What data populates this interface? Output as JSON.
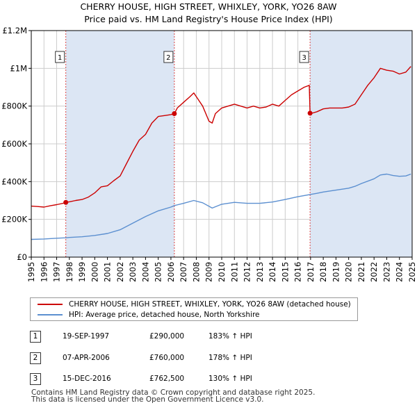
{
  "title_line1": "CHERRY HOUSE, HIGH STREET, WHIXLEY, YORK, YO26 8AW",
  "title_line2": "Price paid vs. HM Land Registry's House Price Index (HPI)",
  "colors": {
    "property": "#cc0000",
    "hpi": "#5b8fd0",
    "shade": "#dce6f4",
    "grid": "#cccccc",
    "marker_line": "#dd4444"
  },
  "chart_data": {
    "type": "line",
    "title": "CHERRY HOUSE, HIGH STREET, WHIXLEY, YORK, YO26 8AW",
    "subtitle": "Price paid vs. HM Land Registry's House Price Index (HPI)",
    "xlim": [
      1995,
      2025
    ],
    "ylim": [
      0,
      1200000
    ],
    "y_ticks": [
      0,
      200000,
      400000,
      600000,
      800000,
      1000000,
      1200000
    ],
    "y_tick_labels": [
      "£0",
      "£200K",
      "£400K",
      "£600K",
      "£800K",
      "£1M",
      "£1.2M"
    ],
    "x_ticks": [
      1995,
      1996,
      1997,
      1998,
      1999,
      2000,
      2001,
      2002,
      2003,
      2004,
      2005,
      2006,
      2007,
      2008,
      2009,
      2010,
      2011,
      2012,
      2013,
      2014,
      2015,
      2016,
      2017,
      2018,
      2019,
      2020,
      2021,
      2022,
      2023,
      2024,
      2025
    ],
    "grid": true,
    "series": [
      {
        "name": "CHERRY HOUSE, HIGH STREET, WHIXLEY, YORK, YO26 8AW (detached house)",
        "color": "#cc0000",
        "x": [
          1995.0,
          1995.5,
          1996.0,
          1996.5,
          1997.0,
          1997.5,
          1997.72,
          1998.0,
          1998.5,
          1999.0,
          1999.5,
          2000.0,
          2000.5,
          2001.0,
          2001.5,
          2002.0,
          2002.5,
          2003.0,
          2003.5,
          2004.0,
          2004.5,
          2005.0,
          2005.5,
          2006.0,
          2006.27,
          2006.5,
          2007.0,
          2007.5,
          2007.8,
          2008.0,
          2008.5,
          2009.0,
          2009.25,
          2009.5,
          2010.0,
          2010.5,
          2011.0,
          2011.5,
          2012.0,
          2012.5,
          2013.0,
          2013.5,
          2014.0,
          2014.5,
          2015.0,
          2015.5,
          2016.0,
          2016.5,
          2016.9,
          2016.96,
          2017.0,
          2017.5,
          2018.0,
          2018.5,
          2019.0,
          2019.5,
          2020.0,
          2020.5,
          2021.0,
          2021.5,
          2022.0,
          2022.5,
          2023.0,
          2023.5,
          2024.0,
          2024.5,
          2024.9
        ],
        "y": [
          270000,
          268000,
          265000,
          272000,
          278000,
          285000,
          290000,
          293000,
          300000,
          305000,
          318000,
          340000,
          372000,
          378000,
          405000,
          430000,
          495000,
          560000,
          620000,
          650000,
          710000,
          745000,
          750000,
          755000,
          760000,
          790000,
          820000,
          850000,
          870000,
          850000,
          800000,
          720000,
          710000,
          760000,
          790000,
          800000,
          810000,
          800000,
          790000,
          800000,
          790000,
          795000,
          810000,
          800000,
          830000,
          860000,
          880000,
          900000,
          910000,
          762500,
          760000,
          770000,
          785000,
          790000,
          790000,
          790000,
          795000,
          810000,
          860000,
          910000,
          950000,
          1000000,
          990000,
          985000,
          970000,
          980000,
          1010000
        ]
      },
      {
        "name": "HPI: Average price, detached house, North Yorkshire",
        "color": "#5b8fd0",
        "x": [
          1995.0,
          1996.0,
          1997.0,
          1997.72,
          1998.0,
          1999.0,
          2000.0,
          2001.0,
          2002.0,
          2003.0,
          2004.0,
          2005.0,
          2006.0,
          2006.27,
          2007.0,
          2007.8,
          2008.5,
          2009.25,
          2010.0,
          2011.0,
          2012.0,
          2013.0,
          2014.0,
          2015.0,
          2016.0,
          2016.96,
          2017.5,
          2018.0,
          2019.0,
          2020.0,
          2020.5,
          2021.0,
          2022.0,
          2022.5,
          2023.0,
          2023.5,
          2024.0,
          2024.5,
          2024.9
        ],
        "y": [
          94000,
          96000,
          100000,
          102500,
          104000,
          108000,
          115000,
          125000,
          145000,
          180000,
          215000,
          245000,
          265000,
          273000,
          285000,
          300000,
          288000,
          260000,
          280000,
          290000,
          285000,
          285000,
          292000,
          305000,
          320000,
          331500,
          338000,
          345000,
          355000,
          365000,
          375000,
          390000,
          415000,
          435000,
          440000,
          432000,
          428000,
          430000,
          440000
        ]
      }
    ],
    "sales": [
      {
        "num": "1",
        "x": 1997.72,
        "price": 290000,
        "date": "19-SEP-1997",
        "price_label": "£290,000",
        "hpi_label": "183% ↑ HPI"
      },
      {
        "num": "2",
        "x": 2006.27,
        "price": 760000,
        "date": "07-APR-2006",
        "price_label": "£760,000",
        "hpi_label": "178% ↑ HPI"
      },
      {
        "num": "3",
        "x": 2016.96,
        "price": 762500,
        "date": "15-DEC-2016",
        "price_label": "£762,500",
        "hpi_label": "130% ↑ HPI"
      }
    ]
  },
  "legend": {
    "property": "CHERRY HOUSE, HIGH STREET, WHIXLEY, YORK, YO26 8AW (detached house)",
    "hpi": "HPI: Average price, detached house, North Yorkshire"
  },
  "sales_table": [
    {
      "num": "1",
      "date": "19-SEP-1997",
      "price": "£290,000",
      "hpi": "183% ↑ HPI"
    },
    {
      "num": "2",
      "date": "07-APR-2006",
      "price": "£760,000",
      "hpi": "178% ↑ HPI"
    },
    {
      "num": "3",
      "date": "15-DEC-2016",
      "price": "£762,500",
      "hpi": "130% ↑ HPI"
    }
  ],
  "footer": {
    "line1": "Contains HM Land Registry data © Crown copyright and database right 2025.",
    "line2": "This data is licensed under the Open Government Licence v3.0."
  }
}
